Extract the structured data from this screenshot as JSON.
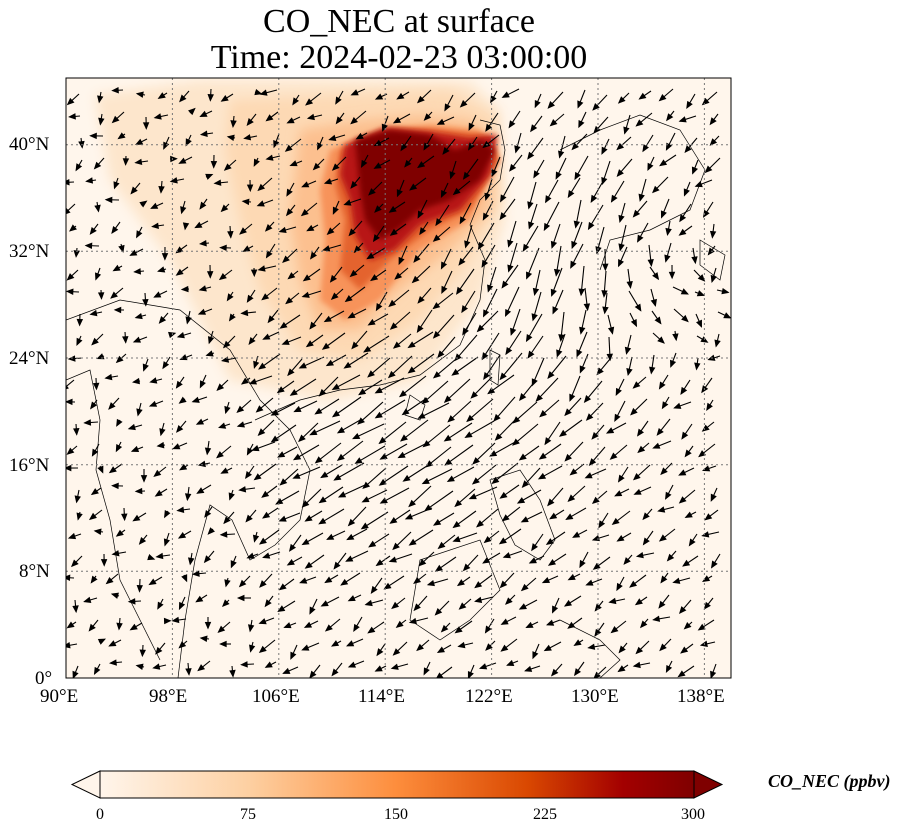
{
  "title_line1": "CO_NEC at surface",
  "title_line2": "Time: 2024-02-23 03:00:00",
  "map": {
    "lon_range": [
      90,
      140
    ],
    "lat_range": [
      0,
      45
    ],
    "grid_style": "dotted",
    "lon_ticks": [
      {
        "value": 90,
        "label": "90°E"
      },
      {
        "value": 98,
        "label": "98°E"
      },
      {
        "value": 106,
        "label": "106°E"
      },
      {
        "value": 114,
        "label": "114°E"
      },
      {
        "value": 122,
        "label": "122°E"
      },
      {
        "value": 130,
        "label": "130°E"
      },
      {
        "value": 138,
        "label": "138°E"
      }
    ],
    "lat_ticks": [
      {
        "value": 0,
        "label": "0°"
      },
      {
        "value": 8,
        "label": "8°N"
      },
      {
        "value": 16,
        "label": "16°N"
      },
      {
        "value": 24,
        "label": "24°N"
      },
      {
        "value": 32,
        "label": "32°N"
      },
      {
        "value": 40,
        "label": "40°N"
      }
    ],
    "field": "CO_NEC concentration with surface wind vectors",
    "colormap": [
      "#fff5eb",
      "#fdd0a2",
      "#fd8d3c",
      "#d94801",
      "#a30000",
      "#7f0000"
    ]
  },
  "colorbar": {
    "label": "CO_NEC (ppbv)",
    "min": 0,
    "max": 300,
    "ticks": [
      {
        "value": 0,
        "label": "0"
      },
      {
        "value": 75,
        "label": "75"
      },
      {
        "value": 150,
        "label": "150"
      },
      {
        "value": 225,
        "label": "225"
      },
      {
        "value": 300,
        "label": "300"
      }
    ],
    "extend": "both"
  }
}
